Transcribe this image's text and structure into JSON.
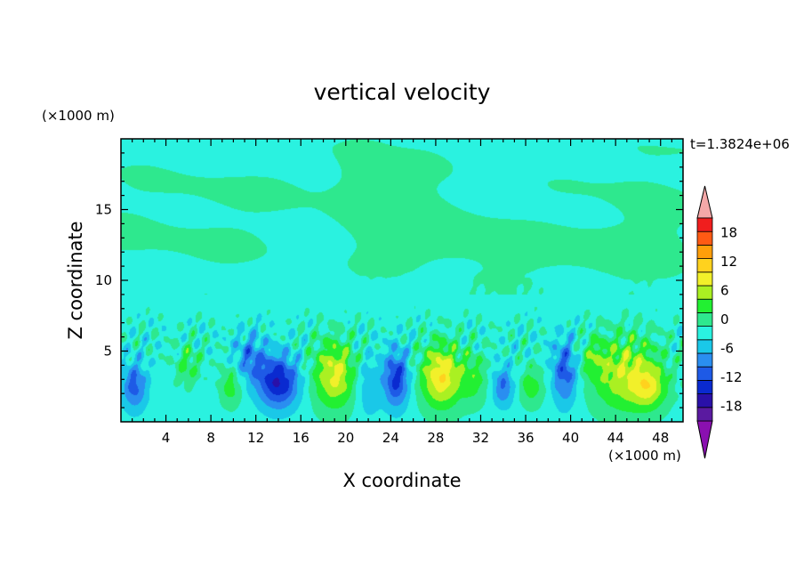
{
  "chart_data": {
    "type": "heatmap",
    "title": "vertical velocity",
    "xlabel": "X coordinate",
    "ylabel": "Z coordinate",
    "x_unit": "(×1000 m)",
    "y_unit": "(×1000 m)",
    "time_label": "t=1.3824e+06",
    "xlim": [
      0,
      50
    ],
    "ylim": [
      0,
      20
    ],
    "x_ticks": [
      "4",
      "8",
      "12",
      "16",
      "20",
      "24",
      "28",
      "32",
      "36",
      "40",
      "44",
      "48"
    ],
    "y_ticks": [
      "5",
      "10",
      "15"
    ],
    "colorbar": {
      "labels": [
        "18",
        "12",
        "6",
        "0",
        "-6",
        "-12",
        "-18"
      ],
      "levels": [
        -21,
        -18,
        -15,
        -12,
        -9,
        -6,
        -3,
        0,
        3,
        6,
        9,
        12,
        15,
        18,
        21
      ],
      "colors": [
        "#5a1aa0",
        "#2a10a8",
        "#0a2ad0",
        "#1e5ae6",
        "#2a8ef0",
        "#1ac8e8",
        "#2af2e0",
        "#2ee88e",
        "#22f032",
        "#aaf022",
        "#f2f02a",
        "#ffd21e",
        "#ff9e0a",
        "#ff5a14",
        "#f01e1e"
      ],
      "under_color": "#8a10b0",
      "over_color": "#f4a8a8"
    },
    "features": [
      {
        "x": 14,
        "z": 2.8,
        "w": -14,
        "sx": 1.3,
        "sz": 1.3
      },
      {
        "x": 11.5,
        "z": 4.5,
        "w": -7,
        "sx": 1.0,
        "sz": 1.2
      },
      {
        "x": 19,
        "z": 3.3,
        "w": 11,
        "sx": 1.4,
        "sz": 1.7
      },
      {
        "x": 24.5,
        "z": 3.0,
        "w": -12,
        "sx": 0.8,
        "sz": 1.4
      },
      {
        "x": 28.5,
        "z": 3.2,
        "w": 13,
        "sx": 1.3,
        "sz": 1.6
      },
      {
        "x": 34,
        "z": 2.5,
        "w": -8,
        "sx": 0.7,
        "sz": 1.0
      },
      {
        "x": 39.5,
        "z": 3.5,
        "w": -10,
        "sx": 0.8,
        "sz": 1.6
      },
      {
        "x": 45,
        "z": 3.3,
        "w": 10,
        "sx": 2.2,
        "sz": 1.9
      },
      {
        "x": 47,
        "z": 2.4,
        "w": 7,
        "sx": 1.0,
        "sz": 1.0
      },
      {
        "x": 1.2,
        "z": 2.5,
        "w": -9,
        "sx": 0.8,
        "sz": 1.2
      },
      {
        "x": 6,
        "z": 4.0,
        "w": 5,
        "sx": 0.8,
        "sz": 1.0
      },
      {
        "x": 9.8,
        "z": 2.5,
        "w": 6,
        "sx": 0.7,
        "sz": 1.0
      },
      {
        "x": 31.5,
        "z": 3.0,
        "w": 5,
        "sx": 0.9,
        "sz": 1.3
      },
      {
        "x": 36.5,
        "z": 2.5,
        "w": 6,
        "sx": 0.8,
        "sz": 1.0
      },
      {
        "x": 22,
        "z": 2.5,
        "w": -5,
        "sx": 0.8,
        "sz": 1.5
      },
      {
        "x": 42,
        "z": 4.5,
        "w": 4,
        "sx": 0.8,
        "sz": 1.0
      }
    ],
    "upper_field": [
      {
        "x": 24,
        "z": 15.5,
        "w": 1.8,
        "sx": 6,
        "sz": 2.5
      },
      {
        "x": 28,
        "z": 13,
        "w": 1.8,
        "sx": 4,
        "sz": 1.5
      },
      {
        "x": 4,
        "z": 12.5,
        "w": 1.6,
        "sx": 6,
        "sz": 1.8
      },
      {
        "x": 7,
        "z": 16.5,
        "w": 1.4,
        "sx": 5,
        "sz": 1.5
      },
      {
        "x": 40,
        "z": 11.5,
        "w": 1.5,
        "sx": 8,
        "sz": 1.8
      },
      {
        "x": 45,
        "z": 14,
        "w": 1.5,
        "sx": 4,
        "sz": 2.5
      },
      {
        "x": 46,
        "z": 18.5,
        "w": 1.5,
        "sx": 3,
        "sz": 1.5
      },
      {
        "x": 21.5,
        "z": 18,
        "w": 1.6,
        "sx": 2,
        "sz": 2.5
      }
    ]
  }
}
